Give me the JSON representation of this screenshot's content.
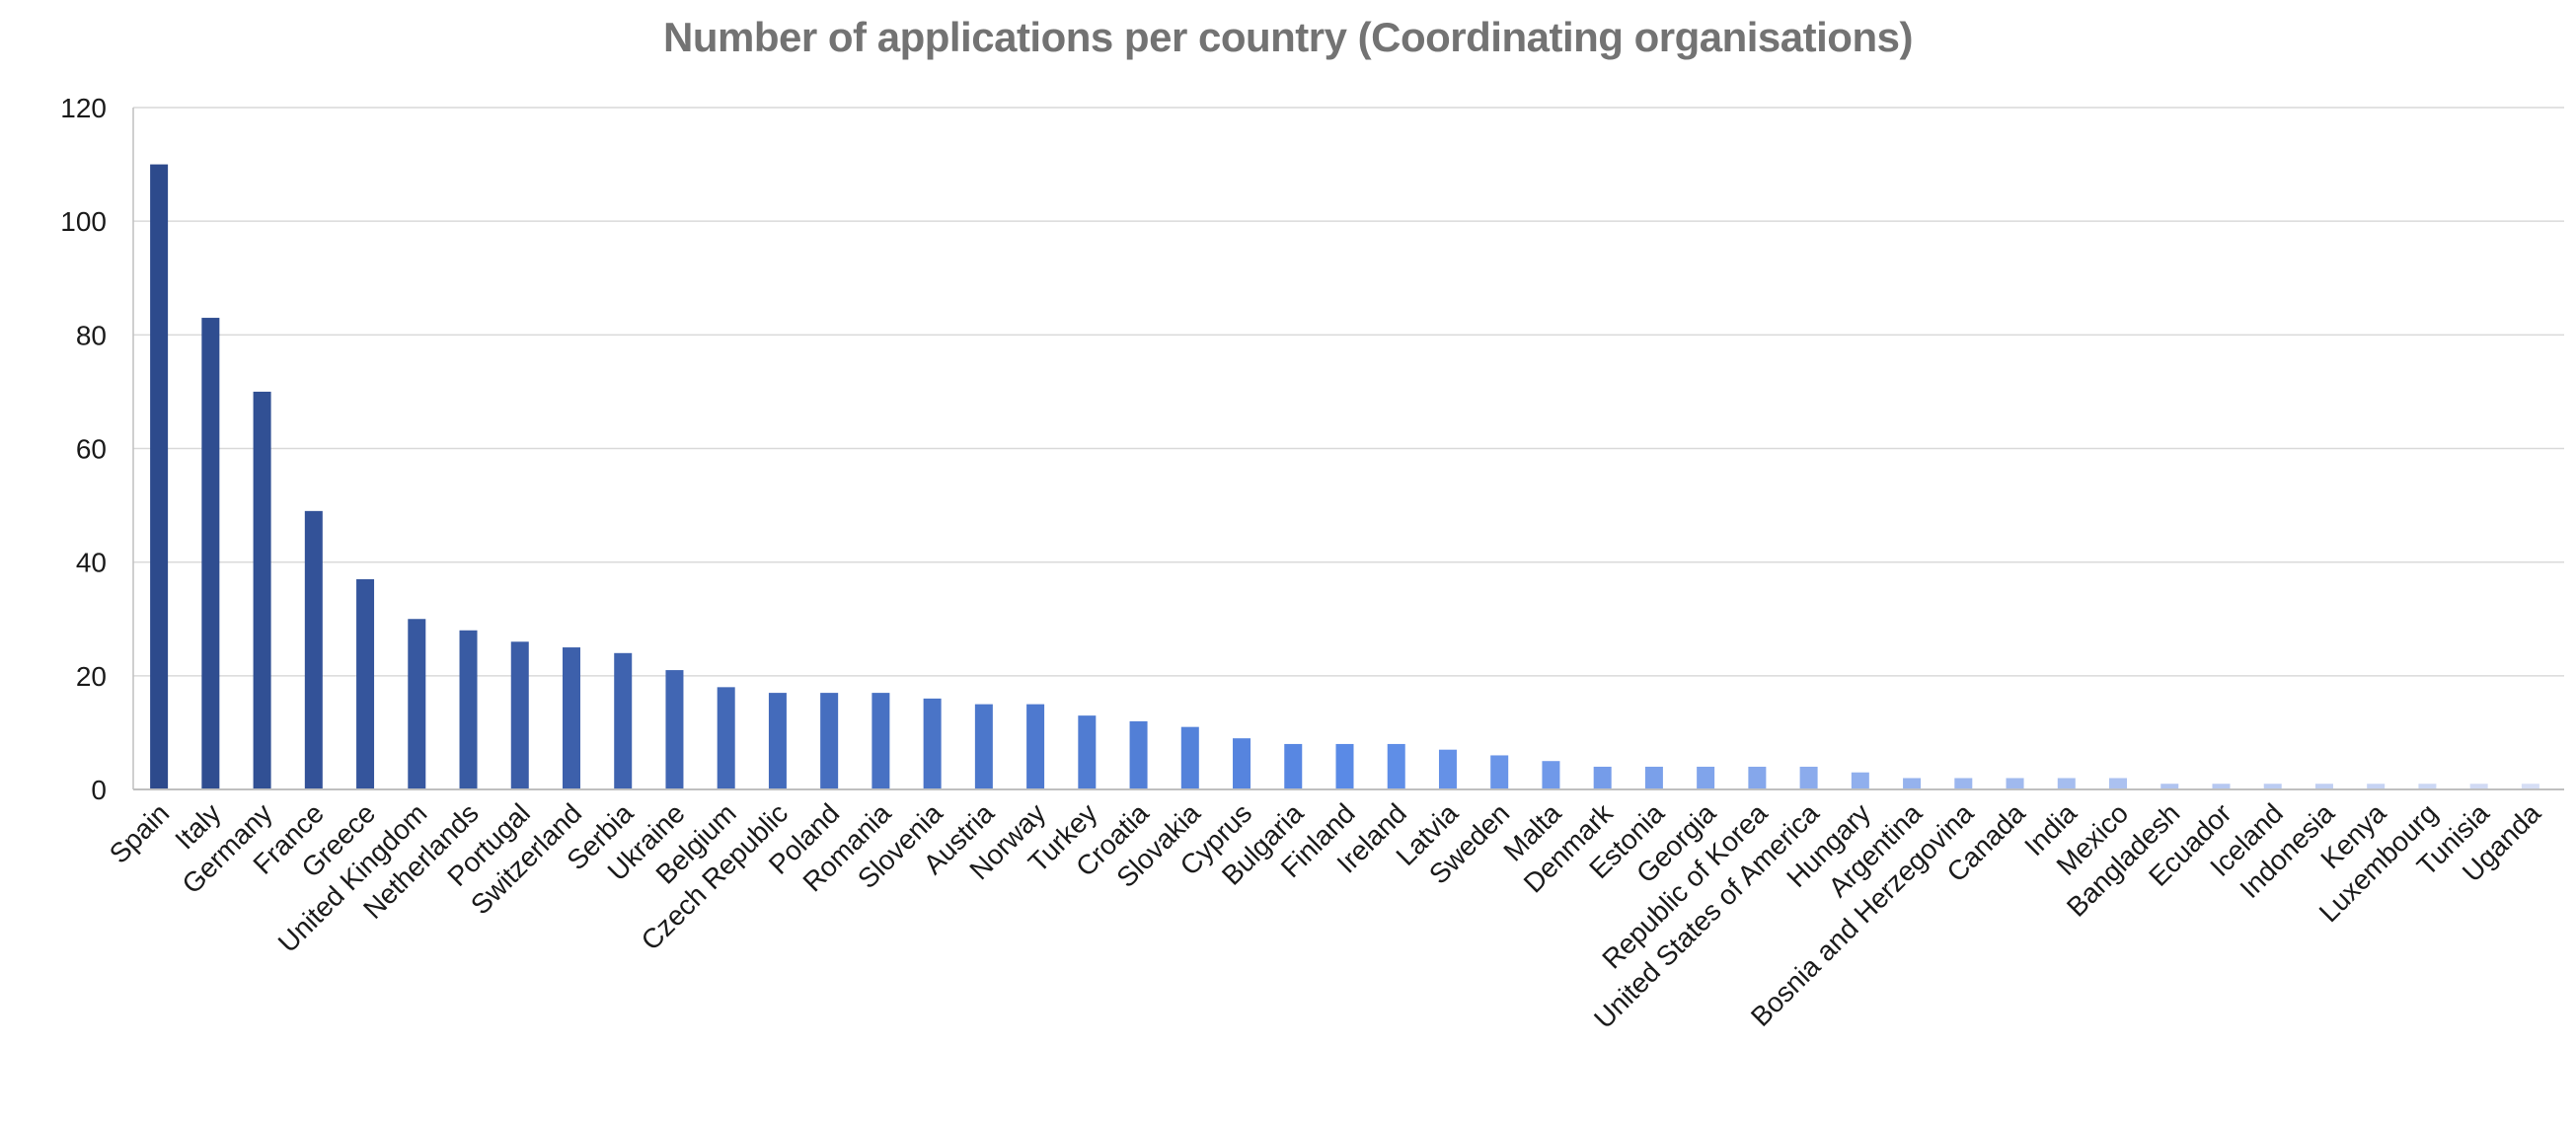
{
  "chart_data": {
    "type": "bar",
    "title": "Number of applications per country (Coordinating organisations)",
    "xlabel": "",
    "ylabel": "",
    "ylim": [
      0,
      120
    ],
    "yticks": [
      0,
      20,
      40,
      60,
      80,
      100,
      120
    ],
    "grid": true,
    "legend": "none",
    "categories": [
      "Spain",
      "Italy",
      "Germany",
      "France",
      "Greece",
      "United Kingdom",
      "Netherlands",
      "Portugal",
      "Switzerland",
      "Serbia",
      "Ukraine",
      "Belgium",
      "Czech Republic",
      "Poland",
      "Romania",
      "Slovenia",
      "Austria",
      "Norway",
      "Turkey",
      "Croatia",
      "Slovakia",
      "Cyprus",
      "Bulgaria",
      "Finland",
      "Ireland",
      "Latvia",
      "Sweden",
      "Malta",
      "Denmark",
      "Estonia",
      "Georgia",
      "Republic of Korea",
      "United States of America",
      "Hungary",
      "Argentina",
      "Bosnia and Herzegovina",
      "Canada",
      "India",
      "Mexico",
      "Bangladesh",
      "Ecuador",
      "Iceland",
      "Indonesia",
      "Kenya",
      "Luxembourg",
      "Tunisia",
      "Uganda"
    ],
    "values": [
      110,
      83,
      70,
      49,
      37,
      30,
      28,
      26,
      25,
      24,
      21,
      18,
      17,
      17,
      17,
      16,
      15,
      15,
      13,
      12,
      11,
      9,
      8,
      8,
      8,
      7,
      6,
      5,
      4,
      4,
      4,
      4,
      4,
      3,
      2,
      2,
      2,
      2,
      2,
      1,
      1,
      1,
      1,
      1,
      1,
      1,
      1
    ],
    "colors": {
      "start": "#2d4a8c",
      "mid": "#5a8ae6",
      "end": "#d6def5",
      "grid": "#d9d9d9",
      "axis": "#bfbfbf"
    }
  }
}
